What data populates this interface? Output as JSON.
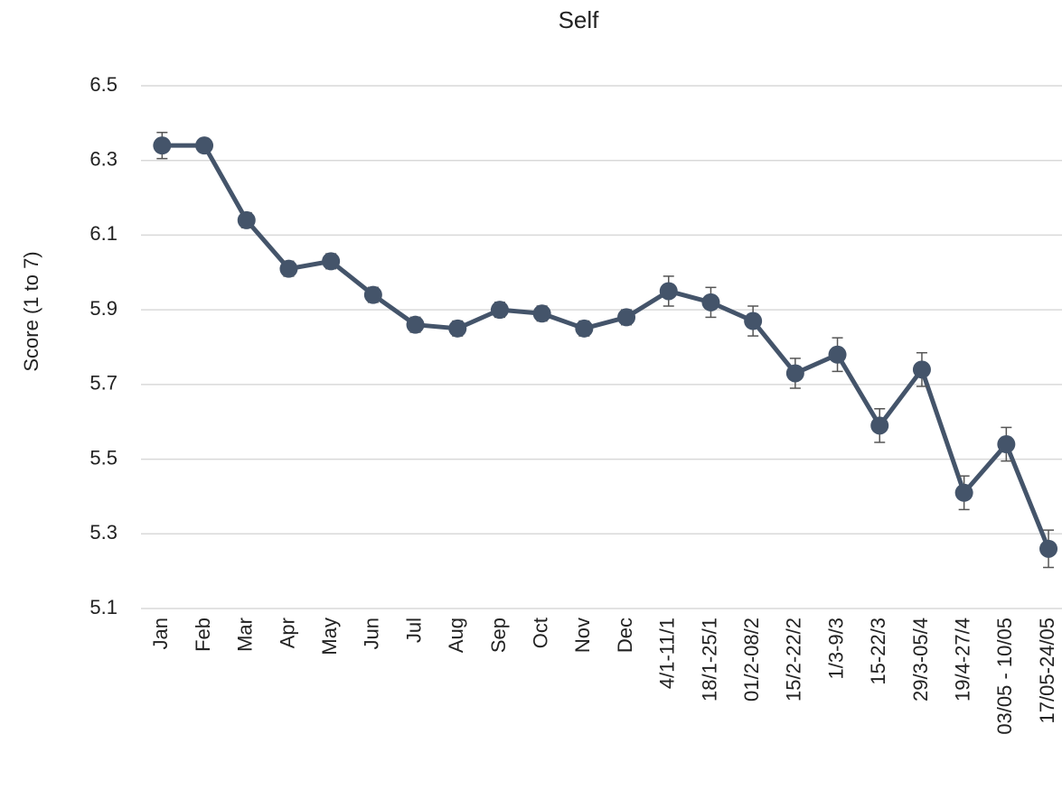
{
  "chart_data": {
    "type": "line",
    "title": "Self",
    "y_label": "Score (1 to 7)",
    "categories": [
      "Jan",
      "Feb",
      "Mar",
      "Apr",
      "May",
      "Jun",
      "Jul",
      "Aug",
      "Sep",
      "Oct",
      "Nov",
      "Dec",
      "4/1-11/1",
      "18/1-25/1",
      "01/2-08/2",
      "15/2-22/2",
      "1/3-9/3",
      "15-22/3",
      "29/3-05/4",
      "19/4-27/4",
      "03/05 - 10/05",
      "17/05-24/05"
    ],
    "values": [
      6.34,
      6.34,
      6.14,
      6.01,
      6.03,
      5.94,
      5.86,
      5.85,
      5.9,
      5.89,
      5.85,
      5.88,
      5.95,
      5.92,
      5.87,
      5.73,
      5.78,
      5.59,
      5.74,
      5.41,
      5.54,
      5.26
    ],
    "errors": [
      0.035,
      0.015,
      0.02,
      0.02,
      0.02,
      0.02,
      0.02,
      0.02,
      0.02,
      0.02,
      0.02,
      0.02,
      0.04,
      0.04,
      0.04,
      0.04,
      0.045,
      0.045,
      0.045,
      0.045,
      0.045,
      0.05
    ],
    "color": "#44546a",
    "ylim": [
      5.1,
      6.5
    ],
    "yticks": [
      5.1,
      5.3,
      5.5,
      5.7,
      5.9,
      6.1,
      6.3,
      6.5
    ],
    "grid": true
  }
}
